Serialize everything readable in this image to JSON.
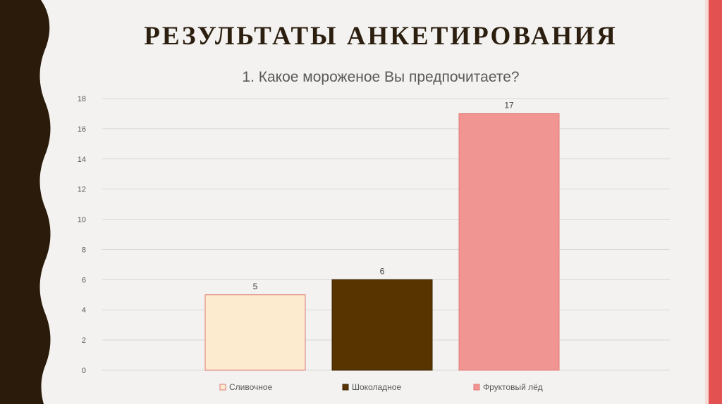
{
  "slide": {
    "title": "РЕЗУЛЬТАТЫ АНКЕТИРОВАНИЯ",
    "left_band_color": "#2a1b0a",
    "accent_color": "#e35150"
  },
  "chart_data": {
    "type": "bar",
    "title": "1. Какое мороженое Вы предпочитаете?",
    "categories": [
      "Сливочное",
      "Шоколадное",
      "Фруктовый лёд"
    ],
    "values": [
      5,
      6,
      17
    ],
    "colors": [
      "#fdebd0",
      "#583400",
      "#f19593"
    ],
    "border_colors": [
      "#e07a74",
      "#3a2200",
      "#e07a74"
    ],
    "ylim": [
      0,
      18
    ],
    "yticks": [
      0,
      2,
      4,
      6,
      8,
      10,
      12,
      14,
      16,
      18
    ],
    "grid": true,
    "legend_position": "bottom",
    "data_labels": true,
    "xlabel": "",
    "ylabel": ""
  }
}
